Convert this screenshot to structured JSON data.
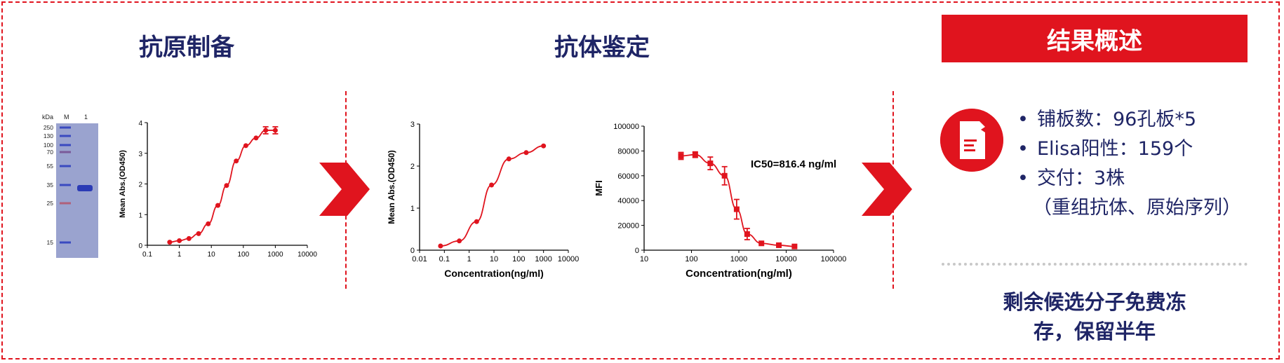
{
  "sections": {
    "antigen_title": "抗原制备",
    "antibody_title": "抗体鉴定",
    "summary_title": "结果概述"
  },
  "gel": {
    "header": [
      "kDa",
      "M",
      "1"
    ],
    "markers": [
      "250",
      "130",
      "100",
      "70",
      "55",
      "35",
      "25",
      "15"
    ]
  },
  "summary": {
    "items": [
      "铺板数：96孔板*5",
      "Elisa阳性：159个",
      "交付：3株"
    ],
    "sub_note": "（重组抗体、原始序列）",
    "remain_line1": "剩余候选分子免费冻",
    "remain_line2": "存，保留半年"
  },
  "colors": {
    "accent": "#e0141e",
    "navy": "#1f2566",
    "gel": "#9aa3cf"
  },
  "chart_data": [
    {
      "type": "line",
      "title": "",
      "xlabel": "",
      "ylabel": "Mean Abs.(OD450)",
      "xscale": "log",
      "xlim": [
        0.1,
        10000
      ],
      "ylim": [
        0,
        4
      ],
      "xticks": [
        "0.1",
        "1",
        "10",
        "100",
        "1000",
        "10000"
      ],
      "yticks": [
        "0",
        "1",
        "2",
        "3",
        "4"
      ],
      "x": [
        0.5,
        1,
        2,
        4,
        8,
        16,
        30,
        60,
        120,
        250,
        500,
        1000
      ],
      "y": [
        0.1,
        0.15,
        0.22,
        0.38,
        0.7,
        1.3,
        1.95,
        2.75,
        3.25,
        3.5,
        3.75,
        3.75
      ]
    },
    {
      "type": "line",
      "title": "",
      "xlabel": "Concentration(ng/ml)",
      "ylabel": "Mean Abs.(OD450)",
      "xscale": "log",
      "xlim": [
        0.01,
        10000
      ],
      "ylim": [
        0,
        3
      ],
      "xticks": [
        "0.01",
        "0.1",
        "1",
        "10",
        "100",
        "1000",
        "10000"
      ],
      "yticks": [
        "0",
        "1",
        "2",
        "3"
      ],
      "x": [
        0.07,
        0.4,
        2,
        8,
        40,
        200,
        1000
      ],
      "y": [
        0.1,
        0.22,
        0.68,
        1.55,
        2.17,
        2.32,
        2.48
      ]
    },
    {
      "type": "line",
      "title": "",
      "annotation": "IC50=816.4 ng/ml",
      "xlabel": "Concentration(ng/ml)",
      "ylabel": "MFI",
      "xscale": "log",
      "xlim": [
        10,
        100000
      ],
      "ylim": [
        0,
        100000
      ],
      "xticks": [
        "10",
        "100",
        "1000",
        "10000",
        "100000"
      ],
      "yticks": [
        "0",
        "20000",
        "40000",
        "60000",
        "80000",
        "100000"
      ],
      "x": [
        60,
        120,
        250,
        500,
        900,
        1500,
        3000,
        7000,
        15000
      ],
      "y": [
        76000,
        77000,
        70000,
        60000,
        33000,
        13000,
        5500,
        4000,
        3000
      ]
    }
  ]
}
